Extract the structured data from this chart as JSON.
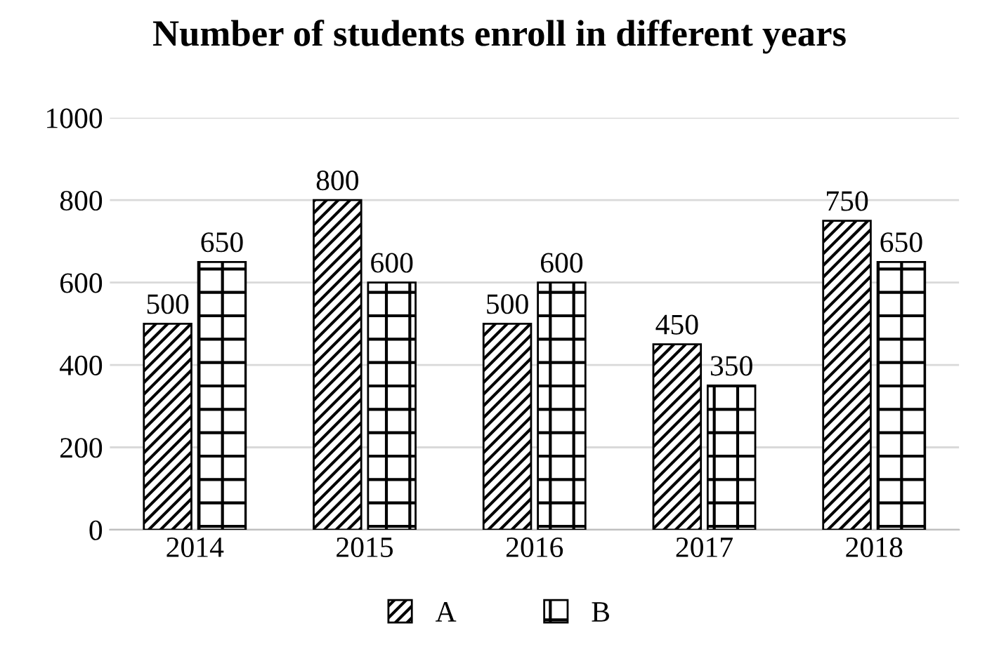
{
  "chart_data": {
    "type": "bar",
    "title": "Number of students enroll in different years",
    "categories": [
      "2014",
      "2015",
      "2016",
      "2017",
      "2018"
    ],
    "series": [
      {
        "name": "A",
        "color": "#000000",
        "values": [
          500,
          800,
          500,
          450,
          750
        ]
      },
      {
        "name": "B",
        "color": "#000000",
        "values": [
          650,
          600,
          600,
          350,
          650
        ]
      }
    ],
    "ylim": [
      0,
      1000
    ],
    "yticks": [
      0,
      200,
      400,
      600,
      800,
      1000
    ],
    "grid": "y",
    "legend": "bottom",
    "data_labels": true
  }
}
